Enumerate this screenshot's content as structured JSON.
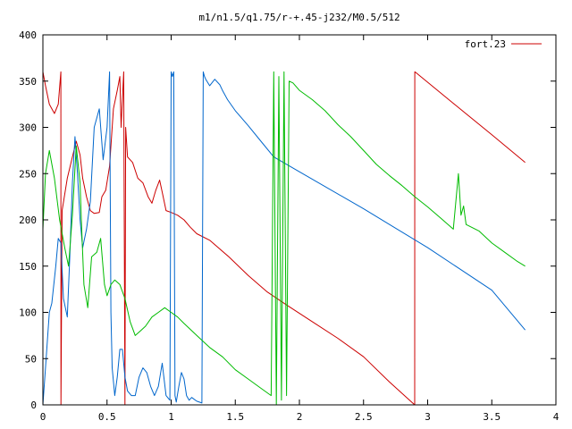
{
  "chart_data": {
    "type": "line",
    "title": "m1/n1.5/q1.75/r-+.45-j232/M0.5/512",
    "xlabel": "",
    "ylabel": "",
    "xlim": [
      0,
      4
    ],
    "ylim": [
      0,
      400
    ],
    "xticks": [
      0,
      0.5,
      1,
      1.5,
      2,
      2.5,
      3,
      3.5,
      4
    ],
    "yticks": [
      0,
      50,
      100,
      150,
      200,
      250,
      300,
      350,
      400
    ],
    "xtick_labels": [
      "0",
      "0.5",
      "1",
      "1.5",
      "2",
      "2.5",
      "3",
      "3.5",
      "4"
    ],
    "ytick_labels": [
      "0",
      "50",
      "100",
      "150",
      "200",
      "250",
      "300",
      "350",
      "400"
    ],
    "grid": false,
    "legend": {
      "position": "top-right",
      "entries": [
        "fort.23"
      ]
    },
    "series": [
      {
        "name": "fort.23",
        "color": "#cc0000",
        "x": [
          0,
          0.02,
          0.05,
          0.09,
          0.12,
          0.14,
          0.141,
          0.15,
          0.19,
          0.23,
          0.26,
          0.29,
          0.31,
          0.34,
          0.37,
          0.4,
          0.44,
          0.46,
          0.49,
          0.52,
          0.55,
          0.58,
          0.6,
          0.61,
          0.63,
          0.64,
          0.645,
          0.66,
          0.7,
          0.74,
          0.78,
          0.82,
          0.85,
          0.88,
          0.91,
          0.93,
          0.96,
          1.0,
          1.05,
          1.1,
          1.15,
          1.2,
          1.3,
          1.45,
          1.6,
          1.75,
          1.9,
          2.1,
          2.3,
          2.5,
          2.7,
          2.899,
          2.9,
          2.901,
          3.2,
          3.5,
          3.76
        ],
        "y": [
          360,
          345,
          325,
          315,
          325,
          360,
          0,
          210,
          245,
          268,
          285,
          270,
          245,
          225,
          210,
          207,
          208,
          225,
          232,
          258,
          320,
          340,
          355,
          300,
          360,
          0,
          300,
          268,
          262,
          245,
          240,
          225,
          218,
          232,
          243,
          230,
          210,
          208,
          205,
          200,
          192,
          185,
          178,
          160,
          140,
          122,
          108,
          90,
          72,
          52,
          25,
          0,
          360,
          360,
          326,
          292,
          262
        ]
      },
      {
        "name": "",
        "color": "#0066cc",
        "x": [
          0,
          0.02,
          0.05,
          0.07,
          0.1,
          0.12,
          0.14,
          0.16,
          0.19,
          0.21,
          0.23,
          0.25,
          0.27,
          0.29,
          0.31,
          0.34,
          0.37,
          0.4,
          0.44,
          0.47,
          0.5,
          0.52,
          0.53,
          0.54,
          0.56,
          0.58,
          0.6,
          0.62,
          0.64,
          0.66,
          0.69,
          0.72,
          0.75,
          0.78,
          0.81,
          0.84,
          0.87,
          0.9,
          0.93,
          0.96,
          0.99,
          1.0,
          1.01,
          1.02,
          1.03,
          1.04,
          1.06,
          1.08,
          1.1,
          1.12,
          1.14,
          1.16,
          1.18,
          1.2,
          1.22,
          1.24,
          1.25,
          1.26,
          1.27,
          1.3,
          1.34,
          1.38,
          1.4,
          1.44,
          1.5,
          1.6,
          1.7,
          1.8,
          2.0,
          2.5,
          3.0,
          3.5,
          3.76
        ],
        "y": [
          0,
          40,
          100,
          110,
          150,
          180,
          175,
          115,
          95,
          160,
          240,
          290,
          250,
          200,
          170,
          190,
          220,
          300,
          320,
          265,
          300,
          360,
          100,
          40,
          10,
          30,
          60,
          60,
          30,
          15,
          10,
          10,
          30,
          40,
          35,
          20,
          10,
          20,
          45,
          10,
          5,
          360,
          355,
          360,
          10,
          3,
          20,
          35,
          28,
          10,
          5,
          8,
          6,
          4,
          3,
          2,
          360,
          355,
          352,
          345,
          352,
          346,
          340,
          330,
          318,
          302,
          285,
          268,
          252,
          212,
          170,
          124,
          81
        ]
      },
      {
        "name": "",
        "color": "#00bb00",
        "x": [
          0,
          0.02,
          0.05,
          0.09,
          0.13,
          0.17,
          0.2,
          0.23,
          0.26,
          0.29,
          0.3,
          0.32,
          0.35,
          0.38,
          0.42,
          0.45,
          0.48,
          0.5,
          0.53,
          0.56,
          0.6,
          0.64,
          0.68,
          0.72,
          0.76,
          0.8,
          0.85,
          0.9,
          0.95,
          1.0,
          1.05,
          1.1,
          1.2,
          1.3,
          1.4,
          1.5,
          1.6,
          1.7,
          1.78,
          1.8,
          1.82,
          1.84,
          1.86,
          1.88,
          1.9,
          1.92,
          1.95,
          2.0,
          2.1,
          2.2,
          2.3,
          2.4,
          2.5,
          2.6,
          2.7,
          2.8,
          2.9,
          3.0,
          3.1,
          3.2,
          3.24,
          3.26,
          3.28,
          3.3,
          3.4,
          3.5,
          3.6,
          3.7,
          3.76
        ],
        "y": [
          190,
          250,
          275,
          245,
          200,
          170,
          150,
          205,
          280,
          240,
          200,
          130,
          105,
          160,
          165,
          180,
          130,
          118,
          130,
          135,
          130,
          115,
          90,
          75,
          80,
          85,
          95,
          100,
          105,
          100,
          95,
          88,
          75,
          62,
          52,
          38,
          28,
          18,
          10,
          360,
          0,
          355,
          5,
          360,
          10,
          350,
          348,
          340,
          330,
          318,
          303,
          290,
          275,
          260,
          248,
          237,
          225,
          214,
          202,
          190,
          250,
          205,
          215,
          195,
          188,
          175,
          165,
          155,
          150
        ]
      }
    ]
  }
}
